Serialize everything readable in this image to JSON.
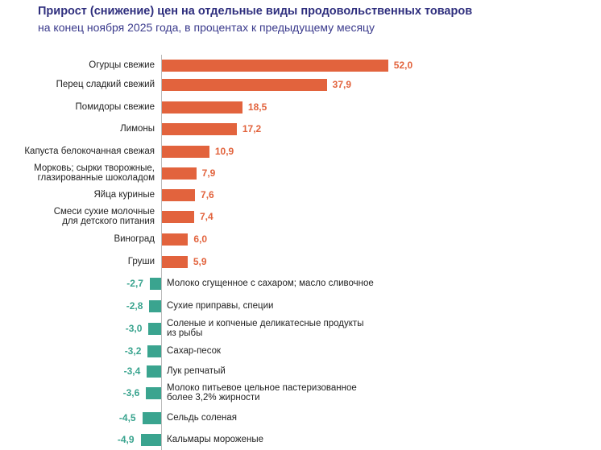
{
  "chart_data": {
    "type": "bar",
    "orientation": "horizontal",
    "title": "Прирост (снижение) цен на отдельные виды продовольственных товаров",
    "subtitle": "на конец ноября 2025 года, в процентах к предыдущему месяцу",
    "categories": [
      "Огурцы свежие",
      "Перец сладкий свежий",
      "Помидоры свежие",
      "Лимоны",
      "Капуста белокочанная свежая",
      "Морковь; сырки творожные,\nглазированные шоколадом",
      "Яйца куриные",
      "Смеси сухие молочные\nдля детского питания",
      "Виноград",
      "Груши",
      "Молоко сгущенное с сахаром; масло сливочное",
      "Сухие приправы, специи",
      "Соленые и копченые деликатесные продукты\nиз рыбы",
      "Сахар-песок",
      "Лук репчатый",
      "Молоко питьевое цельное пастеризованное\nболее 3,2% жирности",
      "Сельдь соленая",
      "Кальмары мороженые"
    ],
    "values": [
      52.0,
      37.9,
      18.5,
      17.2,
      10.9,
      7.9,
      7.6,
      7.4,
      6.0,
      5.9,
      -2.7,
      -2.8,
      -3.0,
      -3.2,
      -3.4,
      -3.6,
      -4.5,
      -4.9
    ],
    "value_labels": [
      "52,0",
      "37,9",
      "18,5",
      "17,2",
      "10,9",
      "7,9",
      "7,6",
      "7,4",
      "6,0",
      "5,9",
      "-2,7",
      "-2,8",
      "-3,0",
      "-3,2",
      "-3,4",
      "-3,6",
      "-4,5",
      "-4,9"
    ],
    "colors": {
      "positive": "#e2633d",
      "negative": "#3aa48f"
    },
    "grid": false,
    "legend": "none"
  }
}
